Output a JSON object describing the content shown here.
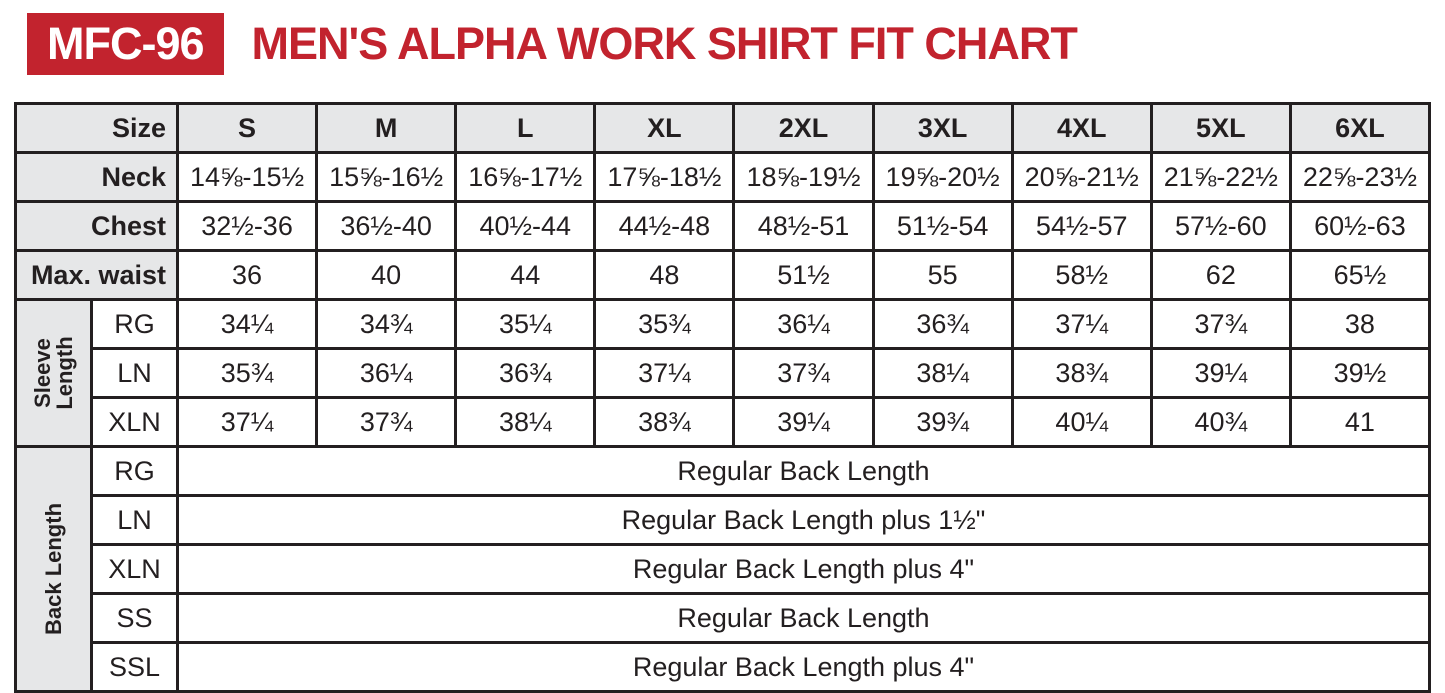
{
  "header": {
    "model": "MFC-96",
    "title": "MEN'S ALPHA WORK SHIRT FIT CHART"
  },
  "colors": {
    "brand_red": "#c2232e",
    "cell_gray": "#e6e7e8",
    "border_black": "#231f20",
    "badge_text": "#ffffff"
  },
  "chart_data": {
    "type": "table",
    "title": "MEN'S ALPHA WORK SHIRT FIT CHART",
    "model": "MFC-96",
    "size_header_label": "Size",
    "columns": [
      "S",
      "M",
      "L",
      "XL",
      "2XL",
      "3XL",
      "4XL",
      "5XL",
      "6XL"
    ],
    "measure_rows": [
      {
        "label": "Neck",
        "values": [
          "14⅝-15½",
          "15⅝-16½",
          "16⅝-17½",
          "17⅝-18½",
          "18⅝-19½",
          "19⅝-20½",
          "20⅝-21½",
          "21⅝-22½",
          "22⅝-23½"
        ]
      },
      {
        "label": "Chest",
        "values": [
          "32½-36",
          "36½-40",
          "40½-44",
          "44½-48",
          "48½-51",
          "51½-54",
          "54½-57",
          "57½-60",
          "60½-63"
        ]
      },
      {
        "label": "Max. waist",
        "values": [
          "36",
          "40",
          "44",
          "48",
          "51½",
          "55",
          "58½",
          "62",
          "65½"
        ]
      }
    ],
    "sleeve_length": {
      "label": "Sleeve Length",
      "rows": [
        {
          "label": "RG",
          "values": [
            "34¼",
            "34¾",
            "35¼",
            "35¾",
            "36¼",
            "36¾",
            "37¼",
            "37¾",
            "38"
          ]
        },
        {
          "label": "LN",
          "values": [
            "35¾",
            "36¼",
            "36¾",
            "37¼",
            "37¾",
            "38¼",
            "38¾",
            "39¼",
            "39½"
          ]
        },
        {
          "label": "XLN",
          "values": [
            "37¼",
            "37¾",
            "38¼",
            "38¾",
            "39¼",
            "39¾",
            "40¼",
            "40¾",
            "41"
          ]
        }
      ]
    },
    "back_length": {
      "label": "Back Length",
      "rows": [
        {
          "label": "RG",
          "value": "Regular Back Length"
        },
        {
          "label": "LN",
          "value": "Regular Back Length plus 1½\""
        },
        {
          "label": "XLN",
          "value": "Regular Back Length plus 4\""
        },
        {
          "label": "SS",
          "value": "Regular Back Length"
        },
        {
          "label": "SSL",
          "value": "Regular Back Length plus 4\""
        }
      ]
    }
  }
}
